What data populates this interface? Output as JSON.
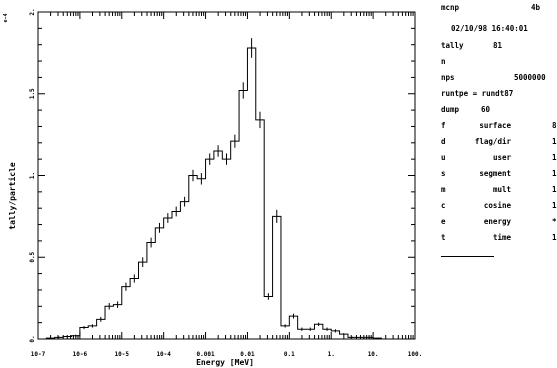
{
  "chart_data": {
    "type": "line",
    "step": true,
    "xscale": "log",
    "xlabel": "Energy [MeV]",
    "ylabel": "tally/particle",
    "yaxis_multiplier": "e-4",
    "xlim": [
      1e-07,
      100
    ],
    "ylim": [
      0,
      2.0
    ],
    "xticks": [
      "10-7",
      "10-6",
      "10-5",
      "10-4",
      "0.001",
      "0.01",
      "0.1",
      "1.",
      "10.",
      "100."
    ],
    "yticks": [
      "0.",
      "0.5",
      "1.",
      "1.5",
      "2."
    ],
    "bin_edges": [
      1e-07,
      1.58e-07,
      2.51e-07,
      3.98e-07,
      6.31e-07,
      1e-06,
      1.58e-06,
      2.51e-06,
      3.98e-06,
      6.31e-06,
      1e-05,
      1.58e-05,
      2.51e-05,
      3.98e-05,
      6.31e-05,
      0.0001,
      0.000158,
      0.000251,
      0.000398,
      0.000631,
      0.001,
      0.00158,
      0.00251,
      0.00398,
      0.00631,
      0.01,
      0.0158,
      0.0251,
      0.0398,
      0.0631,
      0.1,
      0.158,
      0.251,
      0.398,
      0.631,
      1,
      1.58,
      2.51,
      3.98,
      6.31,
      10,
      15.8,
      25.1
    ],
    "values": [
      0.0,
      0.005,
      0.01,
      0.015,
      0.02,
      0.07,
      0.08,
      0.12,
      0.2,
      0.21,
      0.32,
      0.37,
      0.47,
      0.59,
      0.68,
      0.74,
      0.78,
      0.84,
      1.0,
      0.98,
      1.1,
      1.15,
      1.1,
      1.21,
      1.52,
      1.78,
      1.34,
      0.26,
      0.75,
      0.08,
      0.14,
      0.06,
      0.06,
      0.09,
      0.06,
      0.05,
      0.03,
      0.01,
      0.01,
      0.01,
      0.005,
      0.0
    ],
    "errors": [
      0.0,
      0.003,
      0.005,
      0.005,
      0.006,
      0.01,
      0.01,
      0.015,
      0.02,
      0.02,
      0.025,
      0.025,
      0.03,
      0.03,
      0.03,
      0.03,
      0.03,
      0.03,
      0.035,
      0.035,
      0.035,
      0.035,
      0.035,
      0.04,
      0.05,
      0.06,
      0.05,
      0.02,
      0.04,
      0.01,
      0.015,
      0.01,
      0.01,
      0.01,
      0.01,
      0.01,
      0.006,
      0.004,
      0.004,
      0.004,
      0.003,
      0.0
    ]
  },
  "info": {
    "code": "mcnp",
    "version": "4b",
    "datetime": "02/10/98 16:40:01",
    "tally_label": "tally",
    "tally_value": "81",
    "particle": "n",
    "nps_label": "nps",
    "nps_value": "5000000",
    "runtpe": "runtpe = rundt87",
    "dump_label": "dump",
    "dump_value": "60",
    "bins": [
      {
        "key": "f",
        "name": "surface",
        "value": "8"
      },
      {
        "key": "d",
        "name": "flag/dir",
        "value": "1"
      },
      {
        "key": "u",
        "name": "user",
        "value": "1"
      },
      {
        "key": "s",
        "name": "segment",
        "value": "1"
      },
      {
        "key": "m",
        "name": "mult",
        "value": "1"
      },
      {
        "key": "c",
        "name": "cosine",
        "value": "1"
      },
      {
        "key": "e",
        "name": "energy",
        "value": "*"
      },
      {
        "key": "t",
        "name": "time",
        "value": "1"
      }
    ]
  }
}
